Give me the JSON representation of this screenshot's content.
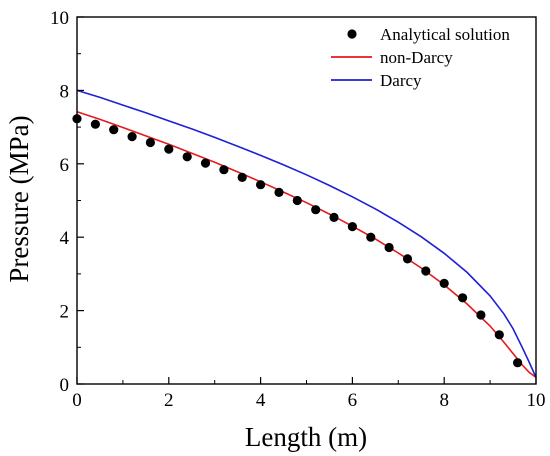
{
  "chart_data": {
    "type": "line",
    "xlabel": "Length (m)",
    "ylabel": "Pressure (MPa)",
    "xlim": [
      0,
      10
    ],
    "ylim": [
      0,
      10
    ],
    "xticks": [
      "0",
      "2",
      "4",
      "6",
      "8",
      "10"
    ],
    "yticks": [
      "0",
      "2",
      "4",
      "6",
      "8",
      "10"
    ],
    "grid": false,
    "legend_position": "top-right",
    "series": [
      {
        "name": "Analytical solution",
        "kind": "scatter",
        "color": "#000000",
        "x": [
          0,
          0.4,
          0.8,
          1.2,
          1.6,
          2.0,
          2.4,
          2.8,
          3.2,
          3.6,
          4.0,
          4.4,
          4.8,
          5.2,
          5.6,
          6.0,
          6.4,
          6.8,
          7.2,
          7.6,
          8.0,
          8.4,
          8.8,
          9.2,
          9.6
        ],
        "y": [
          7.23,
          7.08,
          6.93,
          6.74,
          6.58,
          6.4,
          6.19,
          6.02,
          5.84,
          5.63,
          5.43,
          5.22,
          5.0,
          4.75,
          4.54,
          4.29,
          4.0,
          3.72,
          3.41,
          3.08,
          2.74,
          2.35,
          1.88,
          1.34,
          0.58
        ]
      },
      {
        "name": "non-Darcy",
        "kind": "line",
        "color": "#e41a1c",
        "x": [
          0,
          0.5,
          1,
          1.5,
          2,
          2.5,
          3,
          3.5,
          4,
          4.5,
          5,
          5.5,
          6,
          6.5,
          7,
          7.5,
          8,
          8.5,
          9,
          9.3,
          9.5,
          9.7,
          9.85,
          10
        ],
        "y": [
          7.42,
          7.21,
          6.99,
          6.76,
          6.53,
          6.29,
          6.04,
          5.78,
          5.51,
          5.23,
          4.94,
          4.63,
          4.3,
          3.95,
          3.57,
          3.16,
          2.7,
          2.18,
          1.58,
          1.14,
          0.83,
          0.52,
          0.32,
          0.18
        ]
      },
      {
        "name": "Darcy",
        "kind": "line",
        "color": "#1f1fd6",
        "x": [
          0,
          0.5,
          1,
          1.5,
          2,
          2.5,
          3,
          3.5,
          4,
          4.5,
          5,
          5.5,
          6,
          6.5,
          7,
          7.5,
          8,
          8.5,
          9,
          9.3,
          9.5,
          9.7,
          9.85,
          10
        ],
        "y": [
          8.0,
          7.81,
          7.6,
          7.39,
          7.17,
          6.95,
          6.72,
          6.48,
          6.23,
          5.97,
          5.7,
          5.41,
          5.1,
          4.77,
          4.41,
          4.01,
          3.56,
          3.04,
          2.4,
          1.91,
          1.51,
          1.0,
          0.6,
          0.18
        ]
      }
    ]
  }
}
